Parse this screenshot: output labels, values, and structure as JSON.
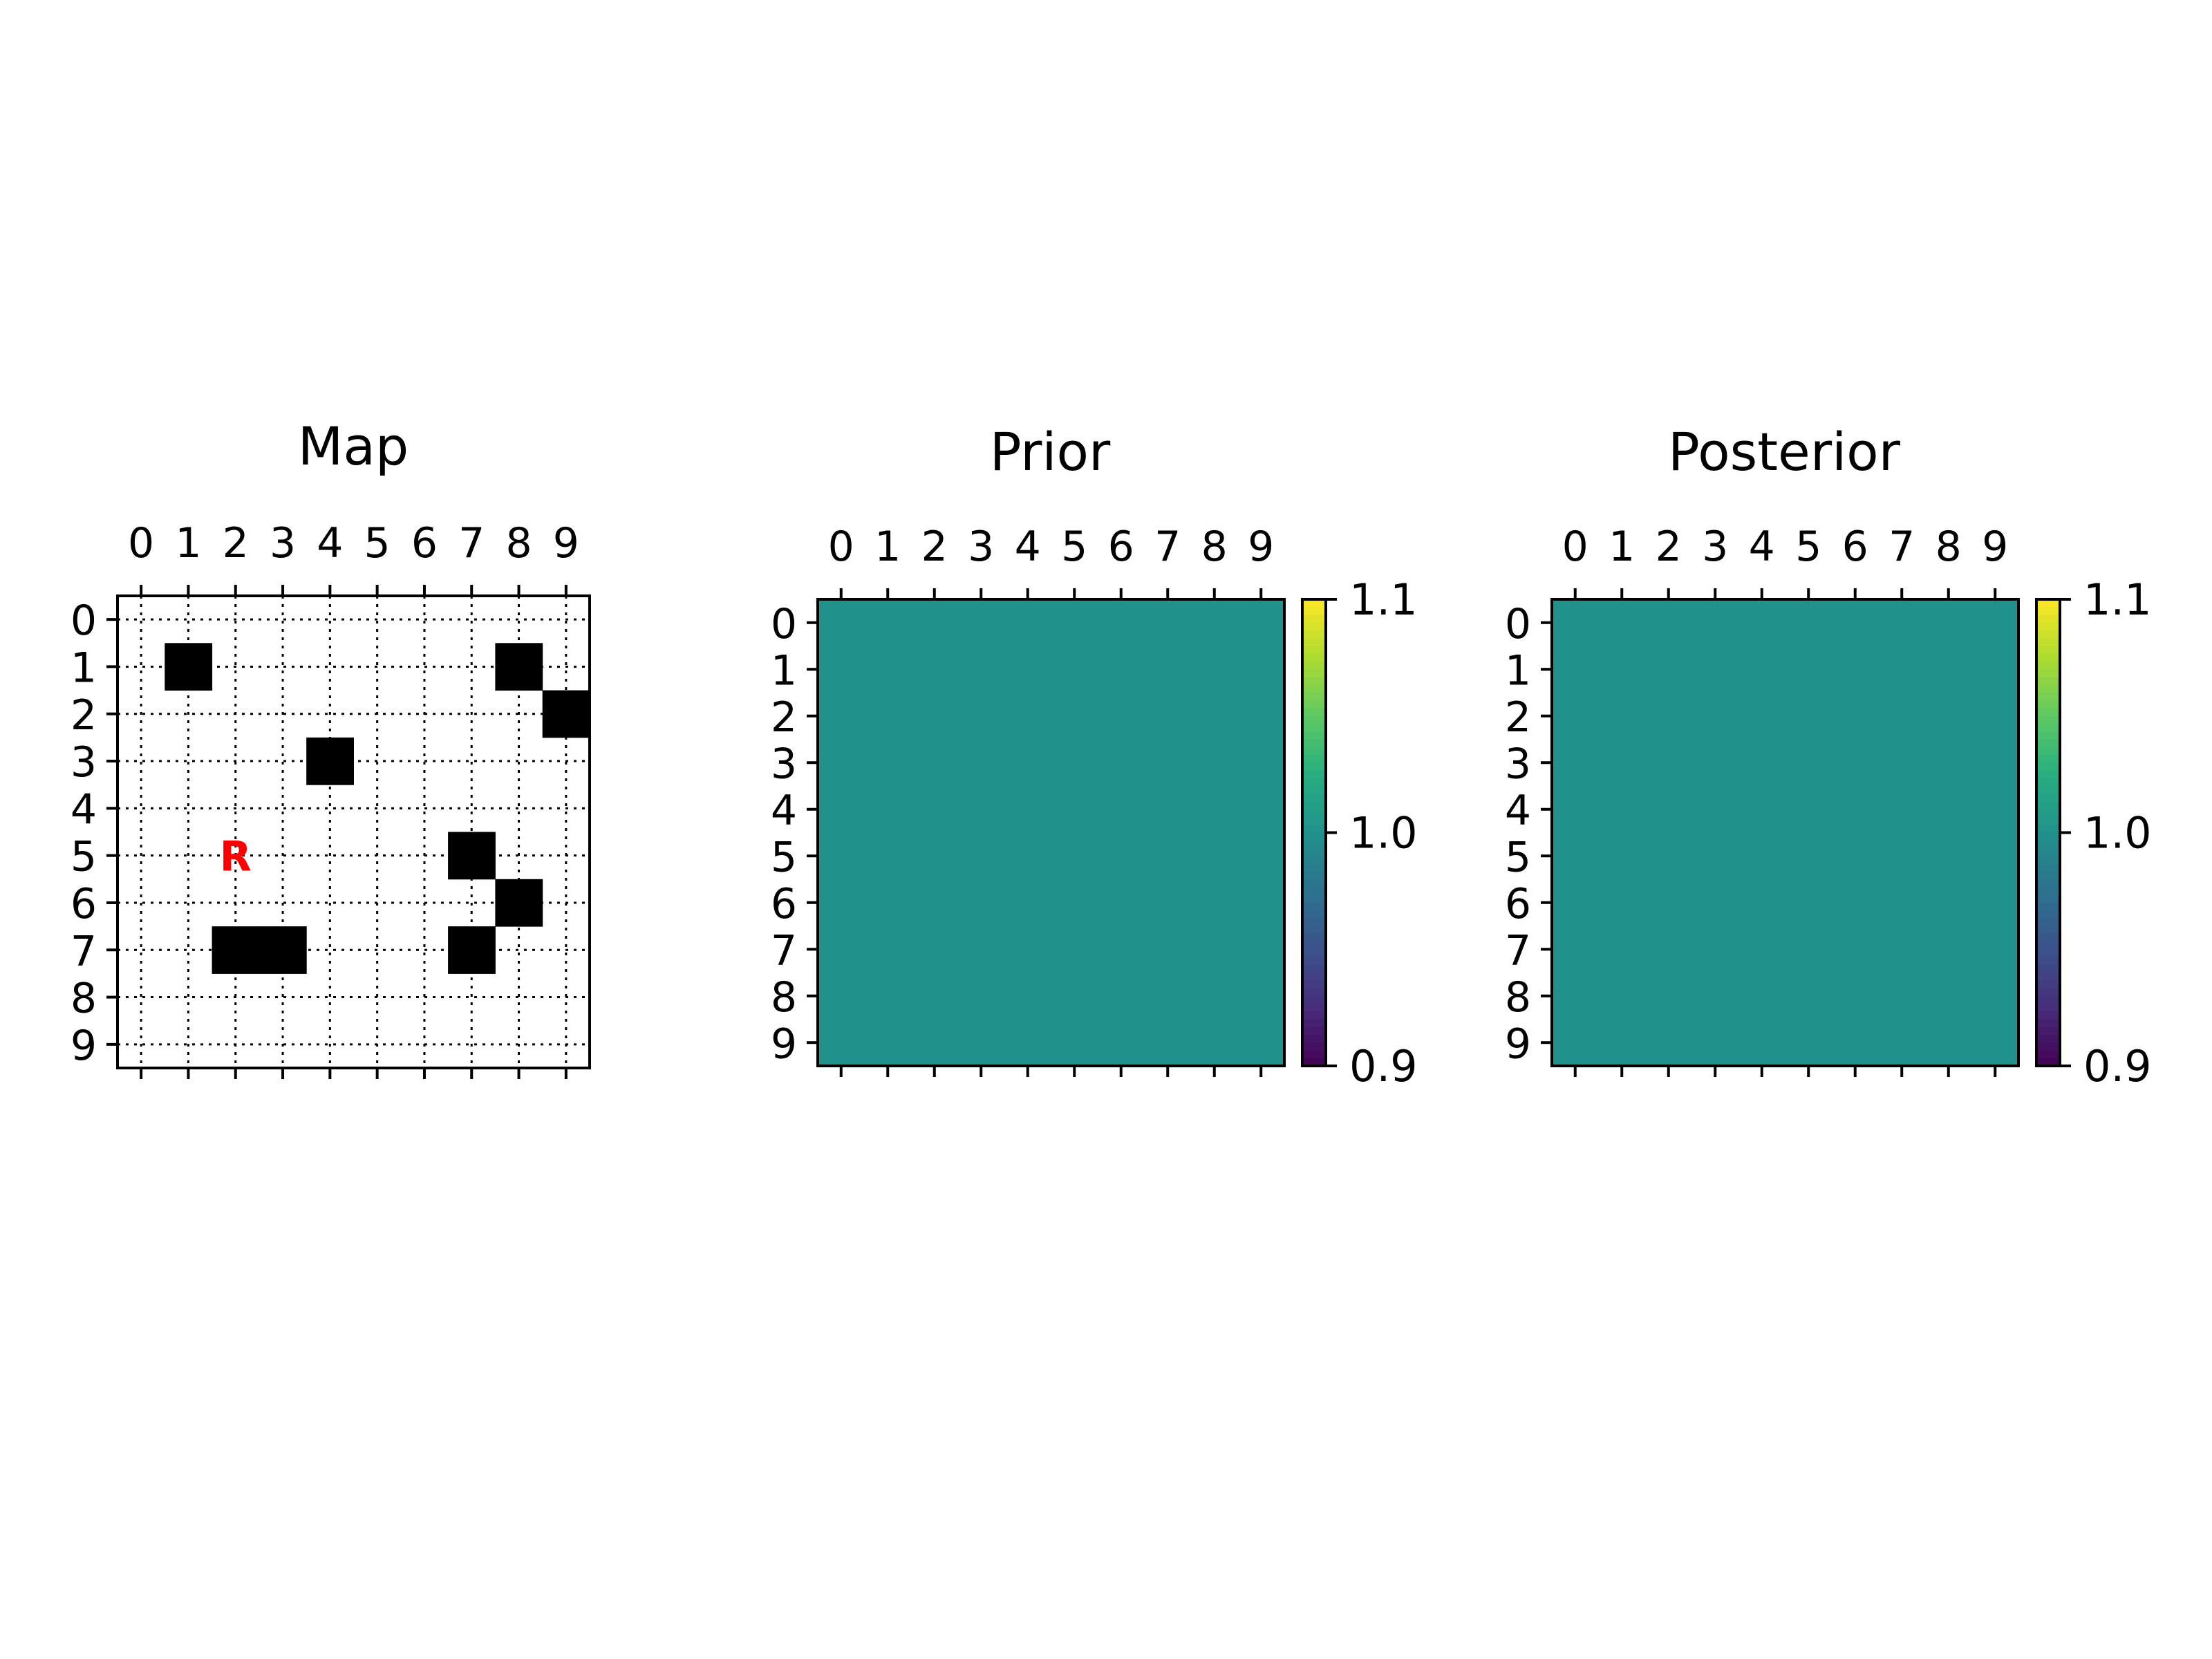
{
  "figure": {
    "background": "#ffffff"
  },
  "chart_data": [
    {
      "type": "heatmap",
      "title": "Map",
      "x_ticks": [
        "0",
        "1",
        "2",
        "3",
        "4",
        "5",
        "6",
        "7",
        "8",
        "9"
      ],
      "y_ticks": [
        "0",
        "1",
        "2",
        "3",
        "4",
        "5",
        "6",
        "7",
        "8",
        "9"
      ],
      "x_ticks_position": "top",
      "grid": true,
      "grid_style": "dotted",
      "colors": {
        "obstacle": "#000000",
        "free": "#ffffff",
        "robot": "#ff0000"
      },
      "obstacles": [
        {
          "row": 1,
          "col": 1
        },
        {
          "row": 1,
          "col": 8
        },
        {
          "row": 2,
          "col": 9
        },
        {
          "row": 3,
          "col": 4
        },
        {
          "row": 5,
          "col": 7
        },
        {
          "row": 6,
          "col": 8
        },
        {
          "row": 7,
          "col": 2
        },
        {
          "row": 7,
          "col": 3
        },
        {
          "row": 7,
          "col": 7
        }
      ],
      "robot": {
        "row": 5,
        "col": 2,
        "label": "R"
      }
    },
    {
      "type": "heatmap",
      "title": "Prior",
      "x_ticks": [
        "0",
        "1",
        "2",
        "3",
        "4",
        "5",
        "6",
        "7",
        "8",
        "9"
      ],
      "y_ticks": [
        "0",
        "1",
        "2",
        "3",
        "4",
        "5",
        "6",
        "7",
        "8",
        "9"
      ],
      "x_ticks_position": "top",
      "colormap": "viridis",
      "values": [
        [
          1,
          1,
          1,
          1,
          1,
          1,
          1,
          1,
          1,
          1
        ],
        [
          1,
          1,
          1,
          1,
          1,
          1,
          1,
          1,
          1,
          1
        ],
        [
          1,
          1,
          1,
          1,
          1,
          1,
          1,
          1,
          1,
          1
        ],
        [
          1,
          1,
          1,
          1,
          1,
          1,
          1,
          1,
          1,
          1
        ],
        [
          1,
          1,
          1,
          1,
          1,
          1,
          1,
          1,
          1,
          1
        ],
        [
          1,
          1,
          1,
          1,
          1,
          1,
          1,
          1,
          1,
          1
        ],
        [
          1,
          1,
          1,
          1,
          1,
          1,
          1,
          1,
          1,
          1
        ],
        [
          1,
          1,
          1,
          1,
          1,
          1,
          1,
          1,
          1,
          1
        ],
        [
          1,
          1,
          1,
          1,
          1,
          1,
          1,
          1,
          1,
          1
        ],
        [
          1,
          1,
          1,
          1,
          1,
          1,
          1,
          1,
          1,
          1
        ]
      ],
      "colorbar": {
        "ticks": [
          "0.9",
          "1.0",
          "1.1"
        ],
        "range": [
          0.9,
          1.1
        ]
      }
    },
    {
      "type": "heatmap",
      "title": "Posterior",
      "x_ticks": [
        "0",
        "1",
        "2",
        "3",
        "4",
        "5",
        "6",
        "7",
        "8",
        "9"
      ],
      "y_ticks": [
        "0",
        "1",
        "2",
        "3",
        "4",
        "5",
        "6",
        "7",
        "8",
        "9"
      ],
      "x_ticks_position": "top",
      "colormap": "viridis",
      "values": [
        [
          1,
          1,
          1,
          1,
          1,
          1,
          1,
          1,
          1,
          1
        ],
        [
          1,
          1,
          1,
          1,
          1,
          1,
          1,
          1,
          1,
          1
        ],
        [
          1,
          1,
          1,
          1,
          1,
          1,
          1,
          1,
          1,
          1
        ],
        [
          1,
          1,
          1,
          1,
          1,
          1,
          1,
          1,
          1,
          1
        ],
        [
          1,
          1,
          1,
          1,
          1,
          1,
          1,
          1,
          1,
          1
        ],
        [
          1,
          1,
          1,
          1,
          1,
          1,
          1,
          1,
          1,
          1
        ],
        [
          1,
          1,
          1,
          1,
          1,
          1,
          1,
          1,
          1,
          1
        ],
        [
          1,
          1,
          1,
          1,
          1,
          1,
          1,
          1,
          1,
          1
        ],
        [
          1,
          1,
          1,
          1,
          1,
          1,
          1,
          1,
          1,
          1
        ],
        [
          1,
          1,
          1,
          1,
          1,
          1,
          1,
          1,
          1,
          1
        ]
      ],
      "colorbar": {
        "ticks": [
          "0.9",
          "1.0",
          "1.1"
        ],
        "range": [
          0.9,
          1.1
        ]
      }
    }
  ]
}
